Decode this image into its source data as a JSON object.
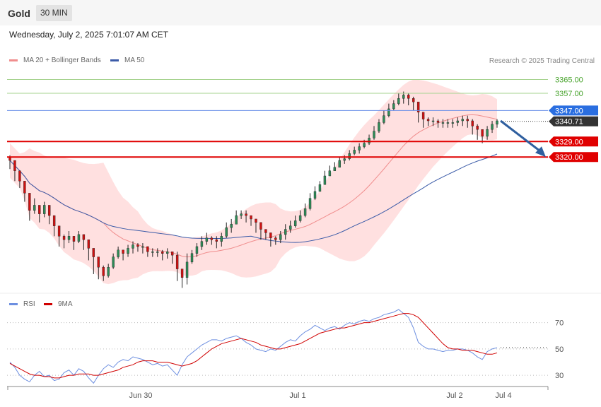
{
  "header": {
    "title": "Gold",
    "timeframe": "30 MIN",
    "date": "Wednesday, July 2, 2025 7:01:07 AM CET"
  },
  "legend": {
    "ma20": "MA 20 + Bollinger Bands",
    "ma50": "MA 50",
    "rsi": "RSI",
    "rsi_ma": "9MA"
  },
  "credit": "Research © 2025 Trading Central",
  "colors": {
    "support": "#e00000",
    "resistance_target": "#49a42e",
    "pivot": "#2a6ee0",
    "last": "#333333",
    "ma20": "#f08d8d",
    "ma50": "#3b5ba8",
    "bands": "#ffd5d5",
    "candle_up": "#2e8b57",
    "candle_down": "#d01010",
    "rsi": "#6d8fe0",
    "rsi_ma": "#d00000",
    "arrow": "#2f5f9f"
  },
  "chart_data": [
    {
      "type": "candlestick",
      "instrument": "Gold",
      "timeframe": "30 MIN",
      "x_ticks": [
        "Jun 30",
        "Jul 1",
        "Jul 2",
        "Jul 4"
      ],
      "ylim": [
        3245,
        3373
      ],
      "levels": [
        {
          "value": 3365.0,
          "label": "3365.00",
          "kind": "target"
        },
        {
          "value": 3357.0,
          "label": "3357.00",
          "kind": "target"
        },
        {
          "value": 3347.0,
          "label": "3347.00",
          "kind": "pivot"
        },
        {
          "value": 3340.71,
          "label": "3340.71",
          "kind": "last"
        },
        {
          "value": 3329.0,
          "label": "3329.00",
          "kind": "support"
        },
        {
          "value": 3320.0,
          "label": "3320.00",
          "kind": "support"
        }
      ],
      "close": [
        3318,
        3312,
        3306,
        3299,
        3289,
        3292,
        3287,
        3292,
        3286,
        3280,
        3274,
        3272,
        3274,
        3271,
        3275,
        3272,
        3267,
        3262,
        3256,
        3251,
        3256,
        3262,
        3266,
        3264,
        3267,
        3269,
        3268,
        3268,
        3265,
        3265,
        3265,
        3264,
        3265,
        3263,
        3255,
        3250,
        3259,
        3264,
        3268,
        3271,
        3273,
        3272,
        3271,
        3274,
        3279,
        3281,
        3286,
        3287,
        3286,
        3284,
        3282,
        3278,
        3276,
        3273,
        3272,
        3275,
        3278,
        3280,
        3283,
        3286,
        3290,
        3296,
        3300,
        3304,
        3309,
        3312,
        3314,
        3318,
        3319,
        3322,
        3324,
        3326,
        3328,
        3331,
        3335,
        3340,
        3344,
        3348,
        3351,
        3354,
        3356,
        3354,
        3352,
        3346,
        3342,
        3341,
        3341,
        3340,
        3340,
        3340,
        3340,
        3341,
        3342,
        3341,
        3338,
        3336,
        3332,
        3336,
        3339,
        3341
      ],
      "high": [
        3321,
        3314,
        3309,
        3304,
        3291,
        3296,
        3290,
        3294,
        3289,
        3284,
        3276,
        3275,
        3277,
        3273,
        3277,
        3274,
        3270,
        3265,
        3259,
        3257,
        3258,
        3264,
        3268,
        3266,
        3269,
        3271,
        3270,
        3270,
        3267,
        3267,
        3267,
        3266,
        3267,
        3265,
        3265,
        3252,
        3264,
        3266,
        3270,
        3274,
        3276,
        3274,
        3274,
        3276,
        3282,
        3284,
        3289,
        3289,
        3289,
        3286,
        3284,
        3280,
        3278,
        3276,
        3274,
        3277,
        3281,
        3283,
        3286,
        3289,
        3293,
        3299,
        3303,
        3306,
        3312,
        3315,
        3317,
        3320,
        3321,
        3324,
        3326,
        3328,
        3330,
        3333,
        3338,
        3342,
        3347,
        3351,
        3353,
        3357,
        3358,
        3357,
        3355,
        3350,
        3344,
        3343,
        3343,
        3342,
        3342,
        3342,
        3342,
        3343,
        3344,
        3344,
        3342,
        3339,
        3336,
        3338,
        3341,
        3342
      ],
      "low": [
        3313,
        3306,
        3302,
        3294,
        3283,
        3287,
        3282,
        3285,
        3281,
        3274,
        3268,
        3267,
        3270,
        3266,
        3270,
        3266,
        3260,
        3252,
        3249,
        3248,
        3250,
        3255,
        3261,
        3260,
        3262,
        3264,
        3265,
        3264,
        3262,
        3262,
        3262,
        3260,
        3261,
        3258,
        3248,
        3244,
        3246,
        3258,
        3262,
        3266,
        3269,
        3269,
        3267,
        3268,
        3273,
        3276,
        3281,
        3284,
        3282,
        3280,
        3276,
        3272,
        3272,
        3268,
        3269,
        3270,
        3272,
        3276,
        3279,
        3282,
        3285,
        3289,
        3295,
        3300,
        3304,
        3309,
        3312,
        3314,
        3316,
        3318,
        3321,
        3322,
        3325,
        3327,
        3330,
        3334,
        3339,
        3343,
        3347,
        3350,
        3351,
        3350,
        3347,
        3340,
        3337,
        3338,
        3338,
        3337,
        3337,
        3337,
        3337,
        3338,
        3338,
        3337,
        3333,
        3330,
        3328,
        3330,
        3334,
        3337
      ]
    },
    {
      "type": "line",
      "name": "RSI panel",
      "x_ticks": [
        "Jun 30",
        "Jul 1",
        "Jul 2",
        "Jul 4"
      ],
      "ylim": [
        22,
        80
      ],
      "y_ticks": [
        30,
        50,
        70
      ],
      "series": [
        {
          "name": "RSI",
          "values": [
            40,
            36,
            30,
            27,
            25,
            30,
            33,
            29,
            30,
            26,
            27,
            32,
            34,
            30,
            35,
            33,
            28,
            24,
            30,
            35,
            38,
            36,
            40,
            42,
            41,
            44,
            43,
            42,
            40,
            38,
            39,
            37,
            38,
            34,
            30,
            38,
            44,
            47,
            50,
            53,
            55,
            57,
            57,
            56,
            58,
            59,
            60,
            58,
            55,
            53,
            50,
            49,
            48,
            50,
            49,
            52,
            55,
            57,
            56,
            60,
            63,
            65,
            68,
            66,
            64,
            66,
            67,
            65,
            68,
            70,
            69,
            71,
            72,
            71,
            73,
            74,
            76,
            77,
            78,
            80,
            77,
            74,
            66,
            55,
            52,
            50,
            50,
            49,
            48,
            49,
            49,
            50,
            50,
            49,
            47,
            44,
            42,
            48,
            50,
            51
          ]
        },
        {
          "name": "9MA",
          "values": [
            39,
            37,
            35,
            33,
            31,
            30,
            30,
            29,
            29,
            28,
            28,
            29,
            30,
            30,
            31,
            31,
            31,
            30,
            30,
            31,
            32,
            33,
            34,
            36,
            37,
            38,
            40,
            41,
            41,
            41,
            40,
            40,
            40,
            39,
            38,
            37,
            38,
            39,
            41,
            44,
            47,
            50,
            52,
            54,
            55,
            56,
            57,
            58,
            57,
            56,
            55,
            53,
            52,
            51,
            50,
            50,
            51,
            52,
            53,
            54,
            56,
            58,
            60,
            62,
            63,
            64,
            65,
            66,
            66,
            67,
            68,
            69,
            70,
            70,
            71,
            72,
            73,
            74,
            75,
            76,
            77,
            77,
            76,
            74,
            70,
            66,
            62,
            58,
            54,
            51,
            50,
            50,
            49,
            49,
            49,
            48,
            47,
            46,
            46,
            47
          ]
        }
      ]
    }
  ]
}
